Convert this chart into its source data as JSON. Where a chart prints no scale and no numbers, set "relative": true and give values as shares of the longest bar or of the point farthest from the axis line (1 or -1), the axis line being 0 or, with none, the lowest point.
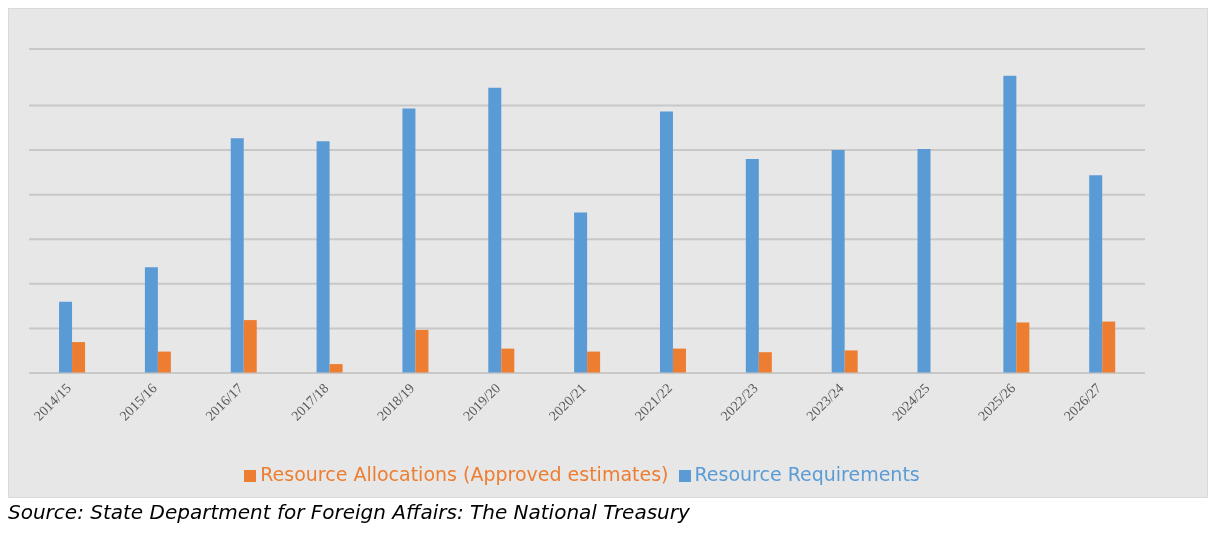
{
  "chart_data": {
    "type": "bar",
    "relative": true,
    "categories": [
      "2014/15",
      "2015/16",
      "2016/17",
      "2017/18",
      "2018/19",
      "2019/20",
      "2020/21",
      "2021/22",
      "2022/23",
      "2023/24",
      "2024/25",
      "2025/26",
      "2026/27"
    ],
    "series": [
      {
        "name": "Resource Requirements",
        "color": "#5b9bd5",
        "values": [
          0.24,
          0.356,
          0.79,
          0.78,
          0.89,
          0.96,
          0.54,
          0.88,
          0.72,
          0.75,
          0.754,
          1,
          0.665
        ]
      },
      {
        "name": "Resource Allocations (Approved estimates)",
        "color": "#ed7d31",
        "values": [
          0.104,
          0.072,
          0.178,
          0.03,
          0.145,
          0.082,
          0.072,
          0.082,
          0.07,
          0.076,
          0,
          0.17,
          0.173
        ]
      }
    ],
    "grid": "y",
    "legend": "bottom",
    "annotations": [
      "Source: State Department for Foreign Affairs: The National Treasury"
    ]
  }
}
